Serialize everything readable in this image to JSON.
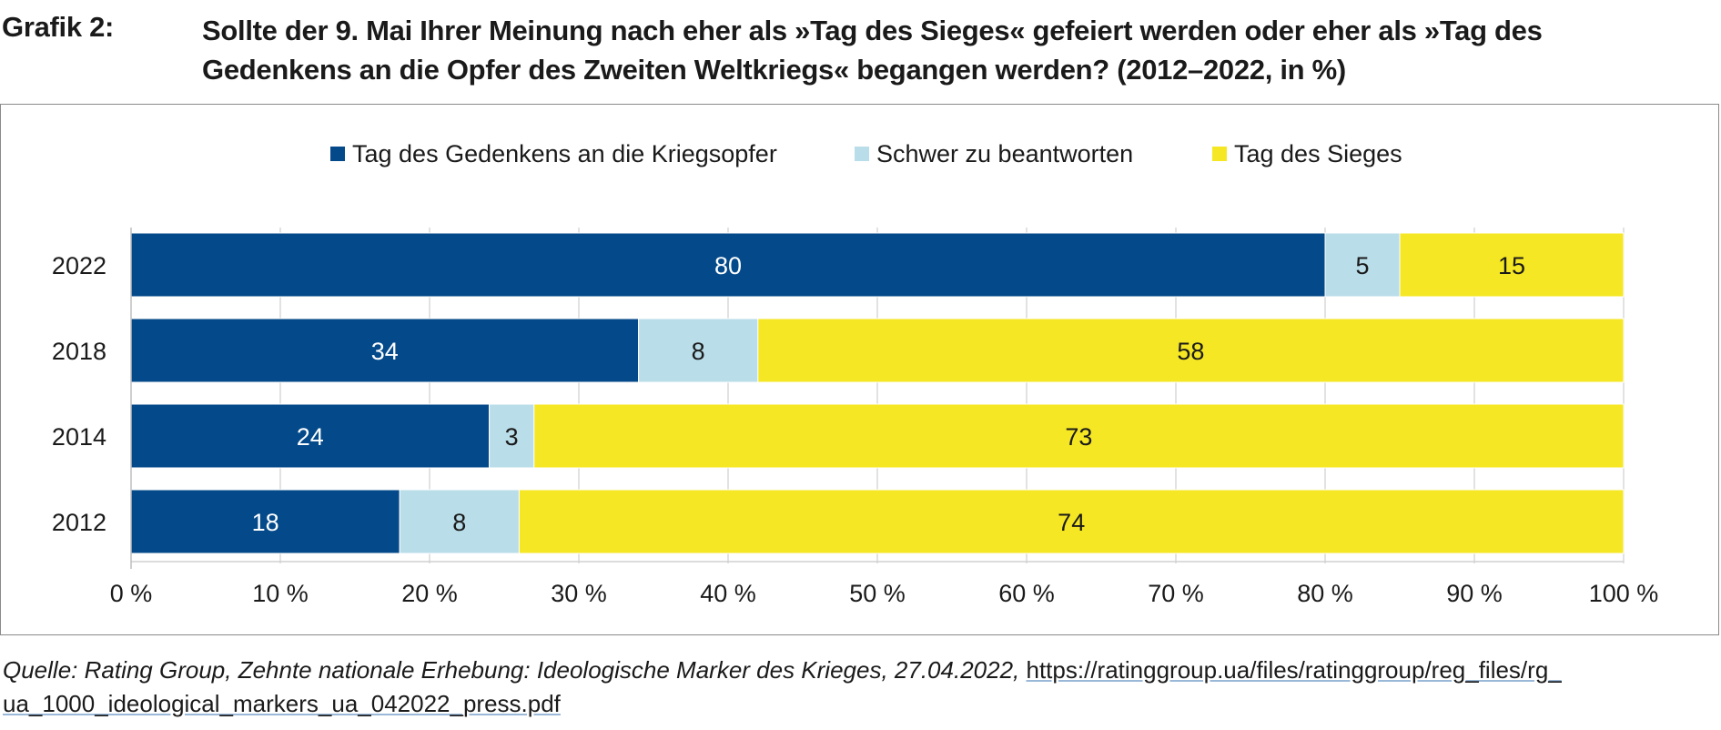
{
  "header": {
    "figure_label": "Grafik 2:",
    "title_line1": "Sollte der 9. Mai Ihrer Meinung nach eher als »Tag des Sieges« gefeiert werden oder eher als »Tag des",
    "title_line2": "Gedenkens an die Opfer des Zweiten Weltkriegs« begangen werden? (2012–2022, in %)"
  },
  "colors": {
    "dark_blue": "#04498a",
    "light_blue": "#b9dde9",
    "yellow": "#f5e723",
    "grid": "#d9d9d9"
  },
  "chart_data": {
    "type": "bar",
    "orientation": "horizontal",
    "stacked": true,
    "categories": [
      "2022",
      "2018",
      "2014",
      "2012"
    ],
    "series": [
      {
        "name": "Tag des Gedenkens an die Kriegsopfer",
        "values": [
          80,
          34,
          24,
          18
        ],
        "color": "#04498a",
        "label_color": "#ffffff"
      },
      {
        "name": "Schwer zu beantworten",
        "values": [
          5,
          8,
          3,
          8
        ],
        "color": "#b9dde9",
        "label_color": "#1a1a1a"
      },
      {
        "name": "Tag des Sieges",
        "values": [
          15,
          58,
          73,
          74
        ],
        "color": "#f5e723",
        "label_color": "#1a1a1a"
      }
    ],
    "xlim": [
      0,
      100
    ],
    "xticks": [
      0,
      10,
      20,
      30,
      40,
      50,
      60,
      70,
      80,
      90,
      100
    ],
    "xtick_labels": [
      "0 %",
      "10 %",
      "20 %",
      "30 %",
      "40 %",
      "50 %",
      "60 %",
      "70 %",
      "80 %",
      "90 %",
      "100 %"
    ],
    "grid": true,
    "legend_position": "top-center"
  },
  "source": {
    "label": "Quelle: Rating Group, Zehnte nationale Erhebung: Ideologische Marker des Krieges, 27.04.2022, ",
    "url_part1": "https://ratinggroup.ua/files/ratinggroup/reg_files/rg_",
    "url_part2": "ua_1000_ideological_markers_ua_042022_press.pdf"
  }
}
